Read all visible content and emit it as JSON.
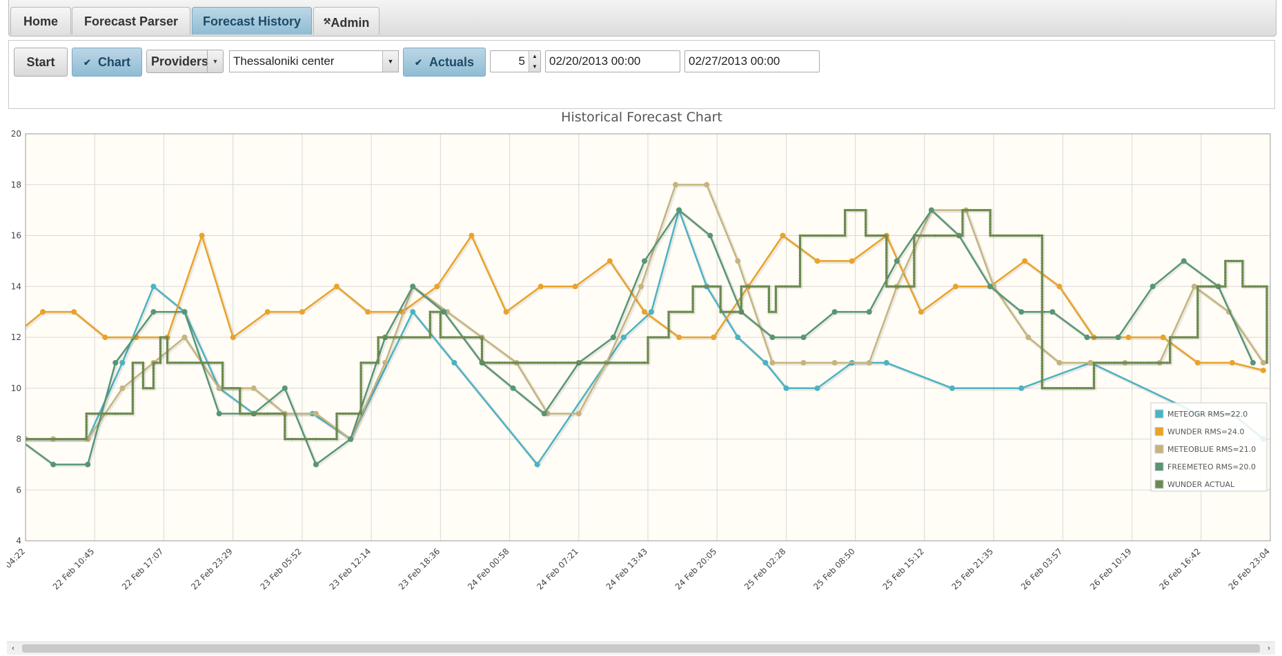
{
  "tabs": [
    {
      "label": "Home",
      "active": false
    },
    {
      "label": "Forecast Parser",
      "active": false
    },
    {
      "label": "Forecast History",
      "active": true
    },
    {
      "label": "Admin",
      "active": false,
      "icon": "wrench-icon"
    }
  ],
  "toolbar": {
    "start_label": "Start",
    "chart_label": "Chart",
    "chart_checked": true,
    "providers_label": "Providers",
    "location_value": "Thessaloniki center",
    "actuals_label": "Actuals",
    "actuals_checked": true,
    "spinner_value": "5",
    "date_from": "02/20/2013 00:00",
    "date_to": "02/27/2013 00:00"
  },
  "chart_data": {
    "type": "line",
    "title": "Historical Forecast Chart",
    "ylim": [
      4,
      20
    ],
    "yticks": [
      "20",
      "18",
      "16",
      "14",
      "12",
      "10",
      "8",
      "6",
      "4"
    ],
    "xlim_fraction": [
      0,
      1
    ],
    "xtick_labels": [
      "04:22",
      "22 Feb 10:45",
      "22 Feb 17:07",
      "22 Feb 23:29",
      "23 Feb 05:52",
      "23 Feb 12:14",
      "23 Feb 18:36",
      "24 Feb 00:58",
      "24 Feb 07:21",
      "24 Feb 13:43",
      "24 Feb 20:05",
      "25 Feb 02:28",
      "25 Feb 08:50",
      "25 Feb 15:12",
      "25 Feb 21:35",
      "26 Feb 03:57",
      "26 Feb 10:19",
      "26 Feb 16:42",
      "26 Feb 23:04"
    ],
    "grid": true,
    "legend_position": "right",
    "colors": {
      "background": "#fffdf5",
      "grid": "#d8d8d8",
      "meteogr": "#4bb2c5",
      "wunder": "#eaa228",
      "meteoblue": "#c5b47f",
      "freemeteo": "#579575",
      "wunder_actual": "#6b8a4f"
    },
    "series": [
      {
        "name": "METEOGR RMS=22.0",
        "color": "#4bb2c5",
        "x_tick_index": [
          0,
          0.4,
          0.9,
          1.4,
          1.85,
          2.3,
          2.8,
          3.3,
          4.15,
          4.7,
          5.6,
          6.2,
          7.4,
          8.65,
          9.05,
          9.45,
          9.85,
          10.3,
          10.7,
          11.0,
          11.45,
          11.95,
          12.45,
          13.4,
          14.4,
          15.4,
          16.95,
          17.45,
          17.9
        ],
        "values": [
          8,
          8,
          8,
          11,
          14,
          13,
          10,
          9,
          9,
          8,
          13,
          11,
          7,
          12,
          13,
          17,
          14,
          12,
          11,
          10,
          10,
          11,
          11,
          10,
          10,
          11,
          9,
          9,
          8
        ]
      },
      {
        "name": "WUNDER RMS=24.0",
        "color": "#eaa228",
        "x_tick_index": [
          -0.2,
          0.25,
          0.7,
          1.15,
          1.6,
          2.05,
          2.55,
          3.0,
          3.5,
          4.0,
          4.5,
          4.95,
          5.45,
          5.95,
          6.45,
          6.95,
          7.45,
          7.95,
          8.45,
          8.95,
          9.45,
          9.95,
          10.45,
          10.95,
          11.45,
          11.95,
          12.45,
          12.95,
          13.45,
          13.95,
          14.45,
          14.95,
          15.45,
          15.95,
          16.45,
          16.95,
          17.45,
          17.9
        ],
        "values": [
          12,
          13,
          13,
          12,
          12,
          12,
          16,
          12,
          13,
          13,
          14,
          13,
          13,
          14,
          16,
          13,
          14,
          14,
          15,
          13,
          12,
          12,
          14,
          16,
          15,
          15,
          16,
          13,
          14,
          14,
          15,
          14,
          12,
          12,
          12,
          11,
          11,
          10.7
        ]
      },
      {
        "name": "METEOBLUE RMS=21.0",
        "color": "#c5b47f",
        "x_tick_index": [
          0,
          0.4,
          0.9,
          1.4,
          1.85,
          2.3,
          2.8,
          3.3,
          3.75,
          4.2,
          4.7,
          5.2,
          5.6,
          6.1,
          6.6,
          7.1,
          7.55,
          8.0,
          8.4,
          8.9,
          9.4,
          9.85,
          10.3,
          10.8,
          11.25,
          11.7,
          12.2,
          12.6,
          13.1,
          13.6,
          14.0,
          14.5,
          14.95,
          15.4,
          15.9,
          16.4,
          16.9,
          17.4,
          17.9
        ],
        "values": [
          8,
          8,
          8,
          10,
          11,
          12,
          10,
          10,
          9,
          9,
          8,
          11,
          14,
          13,
          12,
          11,
          9,
          9,
          11,
          14,
          18,
          18,
          15,
          11,
          11,
          11,
          11,
          14,
          17,
          17,
          14,
          12,
          11,
          11,
          11,
          11,
          14,
          13,
          11
        ]
      },
      {
        "name": "FREEMETEO RMS=20.0",
        "color": "#579575",
        "x_tick_index": [
          -0.1,
          0.4,
          0.9,
          1.3,
          1.85,
          2.3,
          2.8,
          3.3,
          3.75,
          4.2,
          4.7,
          5.2,
          5.6,
          6.05,
          6.6,
          7.05,
          7.5,
          8.0,
          8.5,
          8.95,
          9.45,
          9.9,
          10.35,
          10.8,
          11.25,
          11.7,
          12.2,
          12.6,
          13.1,
          13.5,
          13.95,
          14.4,
          14.85,
          15.35,
          15.8,
          16.3,
          16.75,
          17.25,
          17.75
        ],
        "values": [
          8,
          7,
          7,
          11,
          13,
          13,
          9,
          9,
          10,
          7,
          8,
          12,
          14,
          13,
          11,
          10,
          9,
          11,
          12,
          15,
          17,
          16,
          13,
          12,
          12,
          13,
          13,
          15,
          17,
          16,
          14,
          13,
          13,
          12,
          12,
          14,
          15,
          14,
          11
        ]
      },
      {
        "name": "WUNDER ACTUAL",
        "color": "#6b8a4f",
        "x_tick_index": [
          0,
          0.85,
          0.88,
          1.3,
          1.55,
          1.7,
          1.85,
          1.95,
          2.05,
          2.25,
          2.65,
          2.85,
          3.1,
          3.5,
          3.75,
          3.85,
          4.2,
          4.5,
          4.85,
          5.1,
          5.45,
          5.85,
          6.0,
          6.35,
          6.6,
          6.85,
          7.05,
          7.65,
          8.45,
          8.95,
          9.0,
          9.3,
          9.65,
          10.05,
          10.35,
          10.75,
          10.85,
          11.2,
          11.85,
          12.15,
          12.45,
          12.85,
          13.15,
          13.55,
          13.95,
          14.65,
          14.7,
          15.2,
          15.45,
          15.75,
          16.25,
          16.55,
          16.95,
          17.15,
          17.35,
          17.6,
          17.95
        ],
        "values": [
          8,
          8,
          9,
          9,
          11,
          10,
          11,
          12,
          11,
          11,
          11,
          10,
          9,
          9,
          8,
          8,
          8,
          9,
          11,
          12,
          12,
          13,
          12,
          12,
          11,
          11,
          11,
          11,
          11,
          11,
          12,
          13,
          14,
          13,
          14,
          13,
          14,
          16,
          17,
          16,
          14,
          16,
          16,
          17,
          16,
          16,
          10,
          10,
          11,
          11,
          11,
          12,
          14,
          14,
          15,
          14,
          11
        ]
      }
    ]
  }
}
